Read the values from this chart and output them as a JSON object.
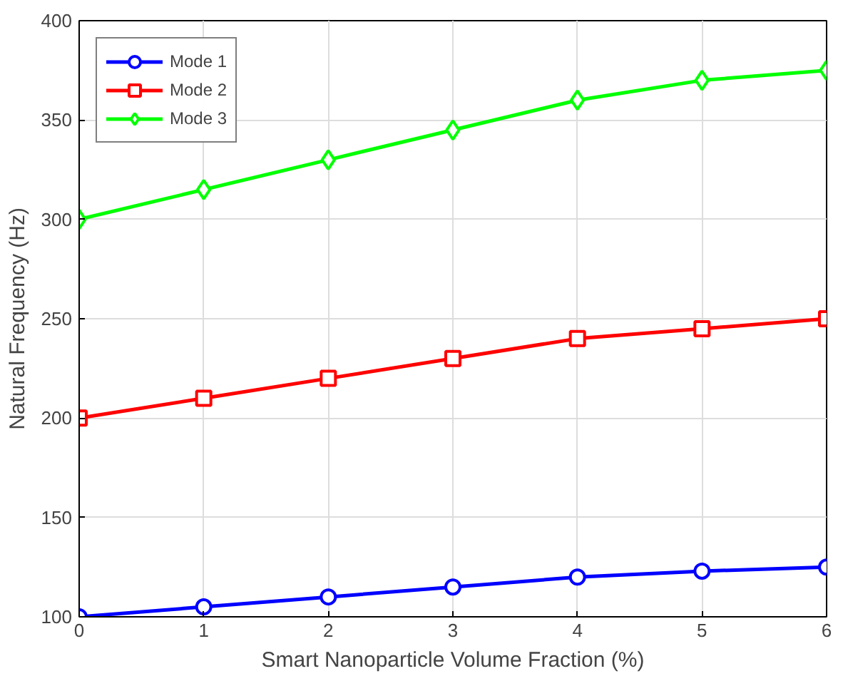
{
  "chart_data": {
    "type": "line",
    "xlabel": "Smart Nanoparticle Volume Fraction (%)",
    "ylabel": "Natural Frequency (Hz)",
    "x": [
      0,
      1,
      2,
      3,
      4,
      5,
      6
    ],
    "series": [
      {
        "name": "Mode 1",
        "color": "#0000ff",
        "marker": "circle",
        "values": [
          100,
          105,
          110,
          115,
          120,
          123,
          125
        ]
      },
      {
        "name": "Mode 2",
        "color": "#ff0000",
        "marker": "square",
        "values": [
          200,
          210,
          220,
          230,
          240,
          245,
          250
        ]
      },
      {
        "name": "Mode 3",
        "color": "#00ff00",
        "marker": "diamond",
        "values": [
          300,
          315,
          330,
          345,
          360,
          370,
          375
        ]
      }
    ],
    "xlim": [
      0,
      6
    ],
    "ylim": [
      100,
      400
    ],
    "xticks": [
      0,
      1,
      2,
      3,
      4,
      5,
      6
    ],
    "yticks": [
      100,
      150,
      200,
      250,
      300,
      350,
      400
    ],
    "grid": true,
    "legend": "top left",
    "line_style": "solid"
  }
}
